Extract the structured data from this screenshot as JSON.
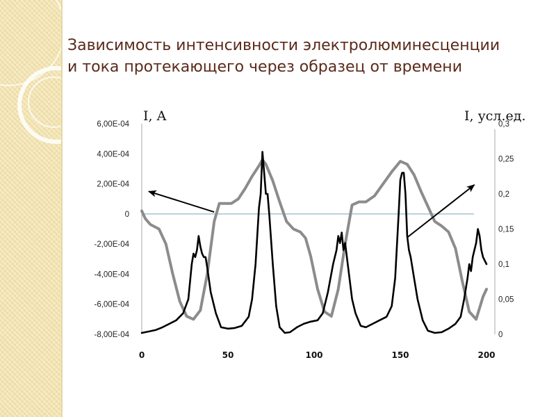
{
  "slide": {
    "title_line1": "Зависимость интенсивности электролюминесценции",
    "title_line2": "и тока протекающего через образец от времени"
  },
  "chart_data": {
    "type": "line",
    "xlabel": "",
    "x_ticks": [
      "0",
      "50",
      "100",
      "150",
      "200"
    ],
    "xlim": [
      0,
      200
    ],
    "y_left": {
      "label": "I, A",
      "ticks": [
        "6,00E-04",
        "4,00E-04",
        "2,00E-04",
        "0",
        "-2,00E-04",
        "-4,00E-04",
        "-6,00E-04",
        "-8,00E-04"
      ],
      "ylim": [
        -0.0008,
        0.0006
      ]
    },
    "y_right": {
      "label": "I, усл.ед.",
      "ticks": [
        "0,3",
        "0,25",
        "0,2",
        "0,15",
        "0,1",
        "0,05",
        "0"
      ],
      "ylim": [
        0,
        0.3
      ]
    },
    "zero_line": true,
    "series": [
      {
        "axis": "left",
        "color": "#8c8c8c",
        "x": [
          0,
          2,
          5,
          10,
          14,
          18,
          22,
          26,
          30,
          34,
          38,
          42,
          45,
          48,
          52,
          56,
          60,
          64,
          68,
          70,
          72,
          76,
          80,
          84,
          88,
          92,
          95,
          98,
          102,
          106,
          110,
          114,
          118,
          122,
          126,
          130,
          135,
          140,
          145,
          150,
          154,
          158,
          162,
          166,
          170,
          174,
          178,
          182,
          186,
          190,
          194,
          198,
          200
        ],
        "y": [
          2e-05,
          -3e-05,
          -7e-05,
          -0.0001,
          -0.0002,
          -0.0004,
          -0.00058,
          -0.00068,
          -0.0007,
          -0.00064,
          -0.0004,
          -5e-05,
          7e-05,
          7e-05,
          7e-05,
          0.0001,
          0.00017,
          0.00025,
          0.00032,
          0.00036,
          0.00033,
          0.00022,
          8e-05,
          -5e-05,
          -0.0001,
          -0.00012,
          -0.00016,
          -0.00028,
          -0.0005,
          -0.00065,
          -0.00068,
          -0.0005,
          -0.0002,
          6e-05,
          8e-05,
          8e-05,
          0.00012,
          0.0002,
          0.00028,
          0.00035,
          0.00033,
          0.00026,
          0.00015,
          5e-05,
          -5e-05,
          -8e-05,
          -0.00012,
          -0.00023,
          -0.00045,
          -0.00065,
          -0.0007,
          -0.00055,
          -0.0005
        ]
      },
      {
        "axis": "right",
        "color": "#000000",
        "x": [
          0,
          4,
          8,
          12,
          16,
          20,
          24,
          27,
          29,
          30,
          31,
          32,
          33,
          34,
          35,
          36,
          37,
          38,
          40,
          43,
          46,
          50,
          54,
          58,
          62,
          64,
          66,
          68,
          69,
          70,
          71,
          72,
          73,
          74,
          76,
          78,
          80,
          83,
          86,
          90,
          94,
          98,
          102,
          105,
          108,
          111,
          113,
          114,
          115,
          116,
          117,
          118,
          119,
          120,
          122,
          124,
          127,
          130,
          134,
          138,
          142,
          145,
          147,
          149,
          150,
          151,
          152,
          153,
          154,
          155,
          156,
          158,
          160,
          163,
          166,
          170,
          174,
          178,
          182,
          185,
          187,
          189,
          190,
          191,
          192,
          193,
          194,
          195,
          196,
          197,
          198,
          200
        ],
        "y": [
          0.002,
          0.004,
          0.006,
          0.01,
          0.015,
          0.02,
          0.03,
          0.05,
          0.1,
          0.115,
          0.11,
          0.12,
          0.14,
          0.125,
          0.115,
          0.11,
          0.11,
          0.095,
          0.06,
          0.03,
          0.01,
          0.008,
          0.009,
          0.012,
          0.025,
          0.05,
          0.1,
          0.18,
          0.2,
          0.26,
          0.23,
          0.2,
          0.2,
          0.17,
          0.1,
          0.04,
          0.01,
          0.002,
          0.003,
          0.01,
          0.015,
          0.018,
          0.02,
          0.03,
          0.06,
          0.1,
          0.12,
          0.14,
          0.13,
          0.145,
          0.12,
          0.13,
          0.11,
          0.09,
          0.05,
          0.03,
          0.012,
          0.01,
          0.015,
          0.02,
          0.025,
          0.04,
          0.08,
          0.17,
          0.22,
          0.23,
          0.23,
          0.2,
          0.14,
          0.12,
          0.11,
          0.08,
          0.05,
          0.02,
          0.005,
          0.002,
          0.003,
          0.008,
          0.015,
          0.025,
          0.05,
          0.08,
          0.1,
          0.09,
          0.11,
          0.12,
          0.13,
          0.15,
          0.14,
          0.12,
          0.11,
          0.1
        ]
      }
    ],
    "annotations": [
      {
        "type": "arrow",
        "color": "#000000",
        "from": [
          42,
          1.3e-05
        ],
        "to": [
          4,
          0.00015
        ],
        "points_to": "left"
      },
      {
        "type": "arrow",
        "color": "#000000",
        "from": [
          154,
          0.138
        ],
        "to": [
          193,
          0.213
        ],
        "points_to": "right"
      }
    ]
  }
}
